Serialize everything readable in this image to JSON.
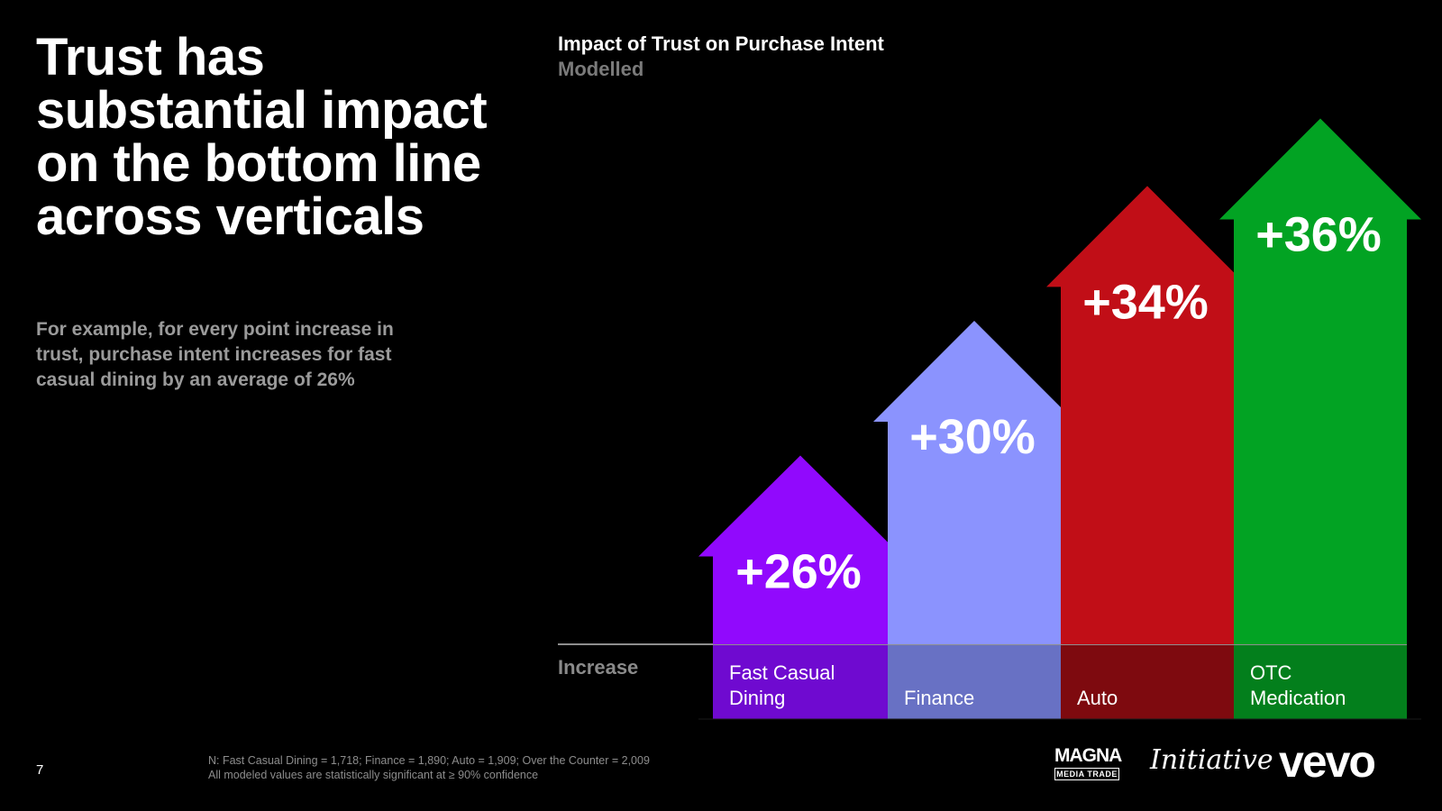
{
  "headline": "Trust has substantial impact on the bottom line across verticals",
  "subtext": "For example, for every point increase in trust, purchase intent increases for fast casual dining by an average of 26%",
  "footer": {
    "page_number": "7",
    "note_line1": "N: Fast Casual Dining = 1,718; Finance = 1,890; Auto = 1,909; Over the Counter = 2,009",
    "note_line2": "All modeled values are statistically significant at ≥ 90% confidence"
  },
  "logos": {
    "magna": "MAGNA",
    "magna_sub": "MEDIA TRADE",
    "initiative": "Initiative",
    "vevo": "vevo"
  },
  "chart_data": {
    "type": "bar",
    "title": "Impact of Trust on Purchase Intent",
    "subtitle": "Modelled",
    "row_label": "Increase",
    "categories": [
      "Fast Casual Dining",
      "Finance",
      "Auto",
      "OTC Medication"
    ],
    "category_lines": [
      [
        "Fast Casual",
        "Dining"
      ],
      [
        "Finance"
      ],
      [
        "Auto"
      ],
      [
        "OTC",
        "Medication"
      ]
    ],
    "values": [
      26,
      30,
      34,
      36
    ],
    "value_labels": [
      "+26%",
      "+30%",
      "+34%",
      "+36%"
    ],
    "colors": [
      "#9109fd",
      "#8b93fe",
      "#c10e17",
      "#02a323"
    ],
    "label_colors": [
      "#6f0ad0",
      "#6871c4",
      "#7e0a0f",
      "#037f1c"
    ],
    "shape": "upward-arrow"
  }
}
